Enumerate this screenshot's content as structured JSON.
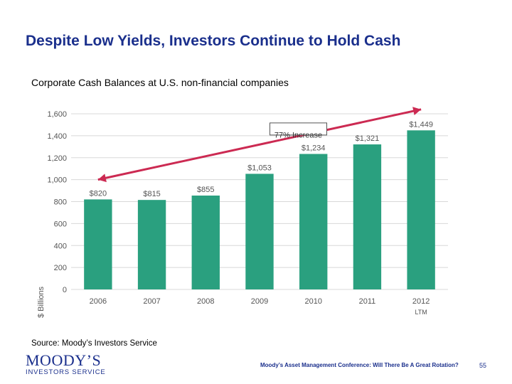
{
  "slide": {
    "title": "Despite Low Yields, Investors Continue to Hold Cash",
    "subtitle": "Corporate Cash Balances at U.S. non-financial companies",
    "source": "Source:  Moody’s Investors Service",
    "footer": "Moody’s Asset Management Conference: Will There Be A Great Rotation?",
    "page_number": "55",
    "logo_text": "MOODY’S",
    "logo_subtext": "INVESTORS SERVICE"
  },
  "chart_data": {
    "type": "bar",
    "title": "",
    "xlabel": "",
    "ylabel": "$ Billions",
    "categories": [
      "2006",
      "2007",
      "2008",
      "2009",
      "2010",
      "2011",
      "2012"
    ],
    "category_sublabels": [
      "",
      "",
      "",
      "",
      "",
      "",
      "LTM"
    ],
    "values": [
      820,
      815,
      855,
      1053,
      1234,
      1321,
      1449
    ],
    "value_labels": [
      "$820",
      "$815",
      "$855",
      "$1,053",
      "$1,234",
      "$1,321",
      "$1,449"
    ],
    "yticks": [
      0,
      200,
      400,
      600,
      800,
      1000,
      1200,
      1400,
      1600
    ],
    "ytick_labels": [
      "0",
      "200",
      "400",
      "600",
      "800",
      "1,000",
      "1,200",
      "1,400",
      "1,600"
    ],
    "ylim": [
      0,
      1600
    ],
    "grid": true,
    "annotation": {
      "text": "77% Increase",
      "from_category": "2006",
      "to_category": "2012",
      "from_value": 1000,
      "to_value": 1640
    },
    "colors": {
      "bar": "#2aa07f",
      "arrow": "#cc2a52",
      "grid": "#d8d8d8",
      "text": "#555555"
    }
  }
}
